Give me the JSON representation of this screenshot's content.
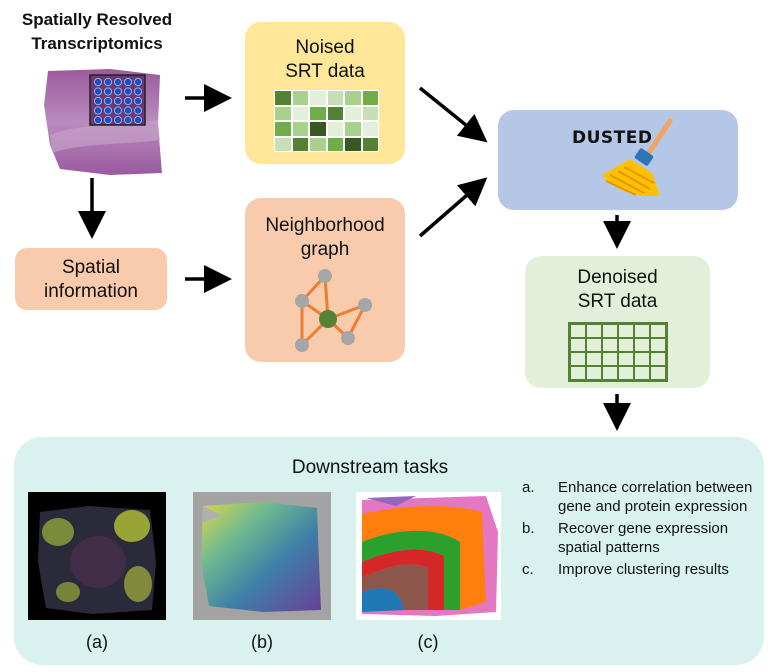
{
  "header": {
    "title": "Spatially Resolved Transcriptomics"
  },
  "noised": {
    "label_line1": "Noised",
    "label_line2": "SRT data",
    "cell_colors": [
      [
        "#548235",
        "#a9d18e",
        "#e2f0d9",
        "#c5e0b4",
        "#a9d18e",
        "#70ad47"
      ],
      [
        "#a9d18e",
        "#e2f0d9",
        "#70ad47",
        "#548235",
        "#e2f0d9",
        "#c5e0b4"
      ],
      [
        "#70ad47",
        "#a9d18e",
        "#385723",
        "#e2f0d9",
        "#a9d18e",
        "#e2f0d9"
      ],
      [
        "#c5e0b4",
        "#548235",
        "#a9d18e",
        "#70ad47",
        "#385723",
        "#548235"
      ]
    ]
  },
  "spatial": {
    "label_line1": "Spatial",
    "label_line2": "information"
  },
  "graph": {
    "label_line1": "Neighborhood",
    "label_line2": "graph"
  },
  "dusted": {
    "label": "DUSTED"
  },
  "denoised": {
    "label_line1": "Denoised",
    "label_line2": "SRT data"
  },
  "downstream": {
    "title": "Downstream tasks",
    "captions": [
      "(a)",
      "(b)",
      "(c)"
    ],
    "tasks": [
      {
        "marker": "a.",
        "text": "Enhance correlation between gene and protein expression"
      },
      {
        "marker": "b.",
        "text": "Recover gene expression spatial patterns"
      },
      {
        "marker": "c.",
        "text": "Improve clustering results"
      }
    ]
  },
  "colors": {
    "noised_box": "#ffe699",
    "graph_box": "#f8cbad",
    "dusted_box": "#b4c7e7",
    "denoised_box": "#e2f0d9",
    "downstream_box": "#d9f2f0",
    "graph_edge": "#ed7d31",
    "graph_center": "#548235",
    "graph_node": "#a6a6a6"
  }
}
